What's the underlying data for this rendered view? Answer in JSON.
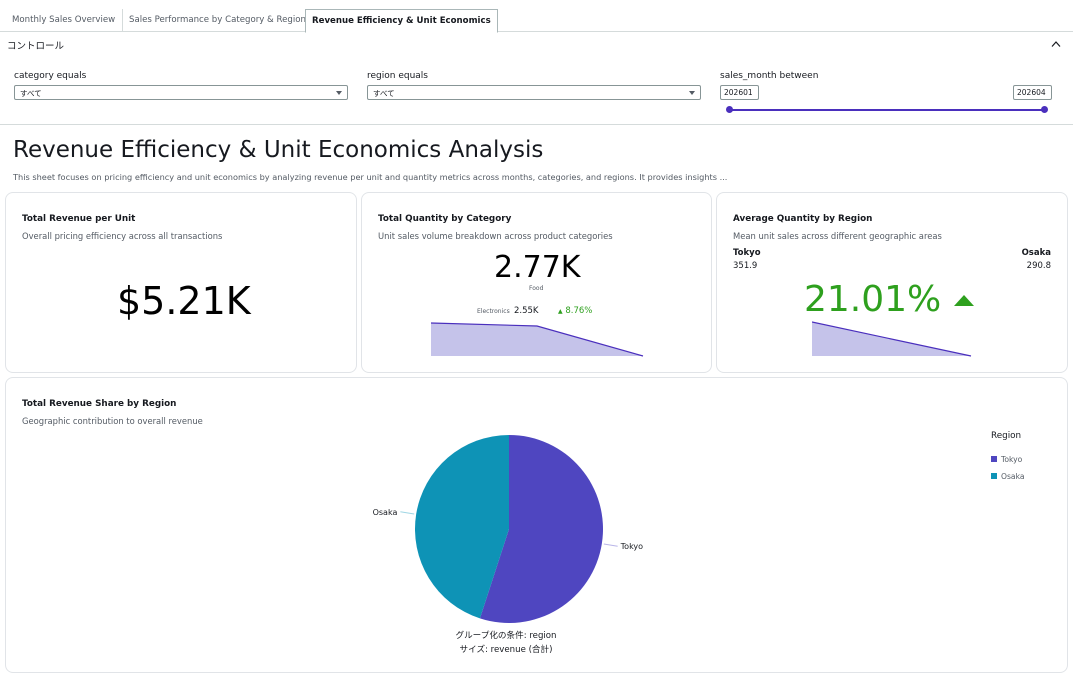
{
  "tabs": [
    {
      "label": "Monthly Sales Overview"
    },
    {
      "label": "Sales Performance by Category & Region"
    },
    {
      "label": "Revenue Efficiency & Unit Economics"
    }
  ],
  "controls": {
    "title": "コントロール",
    "category": {
      "label": "category equals",
      "value": "すべて"
    },
    "region": {
      "label": "region equals",
      "value": "すべて"
    },
    "sales_month": {
      "label": "sales_month between",
      "from": "202601",
      "to": "202604"
    }
  },
  "sheet": {
    "title": "Revenue Efficiency & Unit Economics Analysis",
    "description": "This sheet focuses on pricing efficiency and unit economics by analyzing revenue per unit and quantity metrics across months, categories, and regions. It provides insights ..."
  },
  "kpi_revenue_per_unit": {
    "title": "Total Revenue per Unit",
    "subtitle": "Overall pricing efficiency across all transactions",
    "value": "$5.21K"
  },
  "kpi_quantity_by_category": {
    "title": "Total Quantity by Category",
    "subtitle": "Unit sales volume breakdown across product categories",
    "value": "2.77K",
    "value_label": "Food",
    "compare_label": "Electronics",
    "compare_value": "2.55K",
    "change": "8.76%",
    "change_arrow": "▲"
  },
  "kpi_avg_quantity_by_region": {
    "title": "Average Quantity by Region",
    "subtitle": "Mean unit sales across different geographic areas",
    "left_label": "Tokyo",
    "left_value": "351.9",
    "right_label": "Osaka",
    "right_value": "290.8",
    "change": "21.01%",
    "change_arrow": "▲"
  },
  "pie_card": {
    "title": "Total Revenue Share by Region",
    "subtitle": "Geographic contribution to overall revenue",
    "legend_title": "Region",
    "caption_group": "グループ化の条件: region",
    "caption_size": "サイズ: revenue (合計)"
  },
  "colors": {
    "accent": "#4a2fbd",
    "tokyo": "#4f46c0",
    "osaka": "#0e93b6",
    "positive": "#2ea01e",
    "sparkline_fill": "#c5c3ea"
  },
  "chart_data": [
    {
      "type": "pie",
      "categories": [
        "Tokyo",
        "Osaka"
      ],
      "values": [
        55,
        45
      ],
      "title": "Total Revenue Share by Region",
      "legend": {
        "title": "Region",
        "position": "top-right"
      }
    }
  ]
}
